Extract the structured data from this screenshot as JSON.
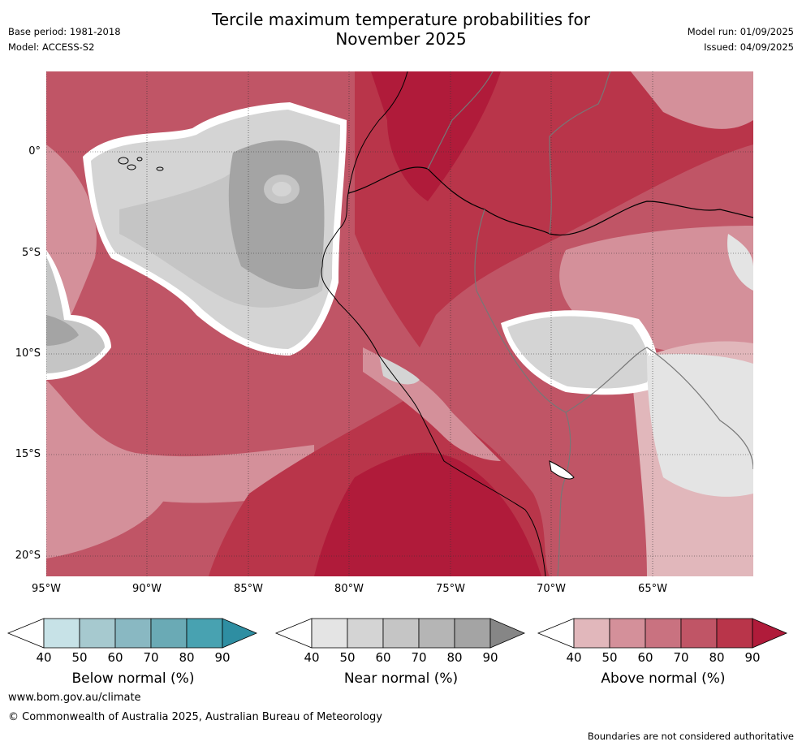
{
  "header": {
    "base_period": "Base period: 1981-2018",
    "model": "Model: ACCESS-S2",
    "title_line1": "Tercile maximum temperature probabilities for",
    "title_line2": "November 2025",
    "model_run": "Model run: 01/09/2025",
    "issued": "Issued: 04/09/2025"
  },
  "map": {
    "lat_labels": [
      "0°",
      "5°S",
      "10°S",
      "15°S",
      "20°S"
    ],
    "lon_labels": [
      "95°W",
      "90°W",
      "85°W",
      "80°W",
      "75°W",
      "70°W",
      "65°W"
    ]
  },
  "legend": {
    "below": {
      "label": "Below normal (%)",
      "ticks": [
        "40",
        "50",
        "60",
        "70",
        "80",
        "90"
      ],
      "colors": [
        "#ffffff",
        "#c7e2e7",
        "#a6c9cf",
        "#89b8c2",
        "#6aaab5",
        "#48a2b1",
        "#2e8ea2"
      ]
    },
    "near": {
      "label": "Near normal (%)",
      "ticks": [
        "40",
        "50",
        "60",
        "70",
        "80",
        "90"
      ],
      "colors": [
        "#ffffff",
        "#e4e4e4",
        "#d4d4d4",
        "#c5c5c5",
        "#b5b5b5",
        "#a4a4a4",
        "#868686"
      ]
    },
    "above": {
      "label": "Above normal (%)",
      "ticks": [
        "40",
        "50",
        "60",
        "70",
        "80",
        "90"
      ],
      "colors": [
        "#ffffff",
        "#e1b7bb",
        "#d4909a",
        "#c97280",
        "#c05566",
        "#b9354a",
        "#b01b3a"
      ]
    }
  },
  "footer": {
    "website": "www.bom.gov.au/climate",
    "copyright": "© Commonwealth of Australia 2025, Australian Bureau of Meteorology",
    "disclaimer": "Boundaries are not considered authoritative"
  }
}
